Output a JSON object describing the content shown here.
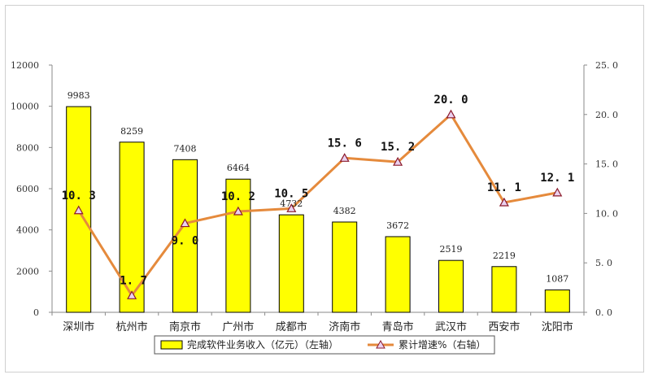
{
  "chart_data": {
    "type": "bar",
    "categories": [
      "深圳市",
      "杭州市",
      "南京市",
      "广州市",
      "成都市",
      "济南市",
      "青岛市",
      "武汉市",
      "西安市",
      "沈阳市"
    ],
    "series": [
      {
        "name": "完成软件业务收入（亿元）（左轴）",
        "type": "bar",
        "axis": "left",
        "values": [
          9983,
          8259,
          7408,
          6464,
          4732,
          4382,
          3672,
          2519,
          2219,
          1087
        ],
        "labels": [
          "9983",
          "8259",
          "7408",
          "6464",
          "4732",
          "4382",
          "3672",
          "2519",
          "2219",
          "1087"
        ]
      },
      {
        "name": "累计增速%（右轴）",
        "type": "line",
        "axis": "right",
        "values": [
          10.3,
          1.7,
          9.0,
          10.2,
          10.5,
          15.6,
          15.2,
          20.0,
          11.1,
          12.1
        ],
        "labels": [
          "10. 3",
          "1. 7",
          "9. 0",
          "10. 2",
          "10. 5",
          "15. 6",
          "15. 2",
          "20. 0",
          "11. 1",
          "12. 1"
        ]
      }
    ],
    "y_left": {
      "ylim": [
        0,
        12000
      ],
      "ticks": [
        "0",
        "2000",
        "4000",
        "6000",
        "8000",
        "10000",
        "12000"
      ]
    },
    "y_right": {
      "ylim": [
        0,
        25
      ],
      "ticks": [
        "0. 0",
        "5. 0",
        "10. 0",
        "15. 0",
        "20. 0",
        "25. 0"
      ]
    },
    "legend_position": "bottom",
    "colors": {
      "bar_fill": "#ffff00",
      "bar_stroke": "#000000",
      "line": "#e58a3c",
      "marker_fill": "#ead1f0",
      "marker_stroke": "#8b1a2b"
    }
  }
}
